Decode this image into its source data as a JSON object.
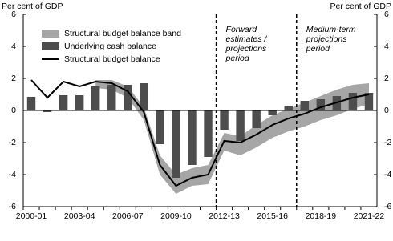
{
  "chart_data": {
    "type": "bar-line-band",
    "y_label": "Per cent of GDP",
    "y2_label": "Per cent of GDP",
    "categories": [
      "2000-01",
      null,
      null,
      "2003-04",
      null,
      null,
      "2006-07",
      null,
      null,
      "2009-10",
      null,
      null,
      "2012-13",
      null,
      null,
      "2015-16",
      null,
      null,
      "2018-19",
      null,
      null,
      "2021-22"
    ],
    "series": [
      {
        "name": "Structural budget balance band",
        "color": "#a6a6a6",
        "kind": "band",
        "low": [
          null,
          null,
          null,
          null,
          1.4,
          1.3,
          0.8,
          -0.6,
          -4.0,
          -5.2,
          -4.7,
          -4.6,
          -2.5,
          -2.8,
          -2.3,
          -1.7,
          -1.3,
          -1.0,
          -0.6,
          -0.3,
          0.1,
          0.4
        ],
        "high": [
          null,
          null,
          null,
          null,
          1.9,
          1.9,
          1.5,
          0.2,
          -2.8,
          -4.0,
          -3.6,
          -3.4,
          -1.4,
          -1.6,
          -0.9,
          -0.3,
          0.1,
          0.5,
          0.9,
          1.3,
          1.6,
          1.7
        ]
      },
      {
        "name": "Underlying cash balance",
        "color": "#4d4d4d",
        "kind": "bar",
        "values": [
          0.85,
          -0.1,
          0.95,
          0.95,
          1.5,
          1.6,
          1.6,
          1.7,
          -2.1,
          -4.2,
          -3.4,
          -2.9,
          -1.2,
          -1.9,
          -1.1,
          -0.3,
          0.3,
          0.6,
          0.7,
          0.9,
          1.1,
          1.1
        ]
      },
      {
        "name": "Structural budget balance",
        "color": "#000000",
        "kind": "line",
        "values": [
          1.9,
          0.8,
          1.8,
          1.5,
          1.8,
          1.7,
          1.2,
          -0.1,
          -3.4,
          -4.7,
          -4.2,
          -4.0,
          -1.9,
          -2.0,
          -1.5,
          -0.9,
          -0.5,
          -0.2,
          0.2,
          0.5,
          0.8,
          1.0
        ]
      }
    ],
    "annotations": [
      {
        "lines": [
          "Forward",
          "estimates /",
          "projections",
          "period"
        ]
      },
      {
        "lines": [
          "Medium-term",
          "projections",
          "period"
        ]
      }
    ],
    "ylim": [
      -6,
      6
    ],
    "yticks": [
      -6,
      -4,
      -2,
      0,
      2,
      4,
      6
    ],
    "grid": false
  }
}
